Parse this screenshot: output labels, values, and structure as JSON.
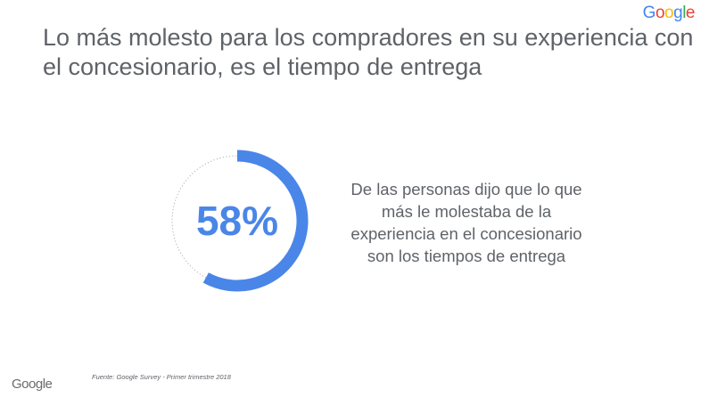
{
  "brand": {
    "logo_text": "Google",
    "logo_colors": [
      "#4285F4",
      "#EA4335",
      "#FBBC05",
      "#4285F4",
      "#34A853",
      "#EA4335"
    ]
  },
  "slide": {
    "title": "Lo más molesto para los compradores en su experiencia con el concesionario, es el tiempo de entrega",
    "description": "De las personas dijo que lo que más le molestaba de la experiencia en el concesionario son los tiempos de entrega",
    "source": "Fuente: Google Survey - Primer trimestre 2018"
  },
  "chart_data": {
    "type": "donut",
    "value_label": "58%",
    "value": 58,
    "max": 100,
    "colors": {
      "fill": "#4a86e8",
      "track": "#b0b0b0"
    }
  }
}
